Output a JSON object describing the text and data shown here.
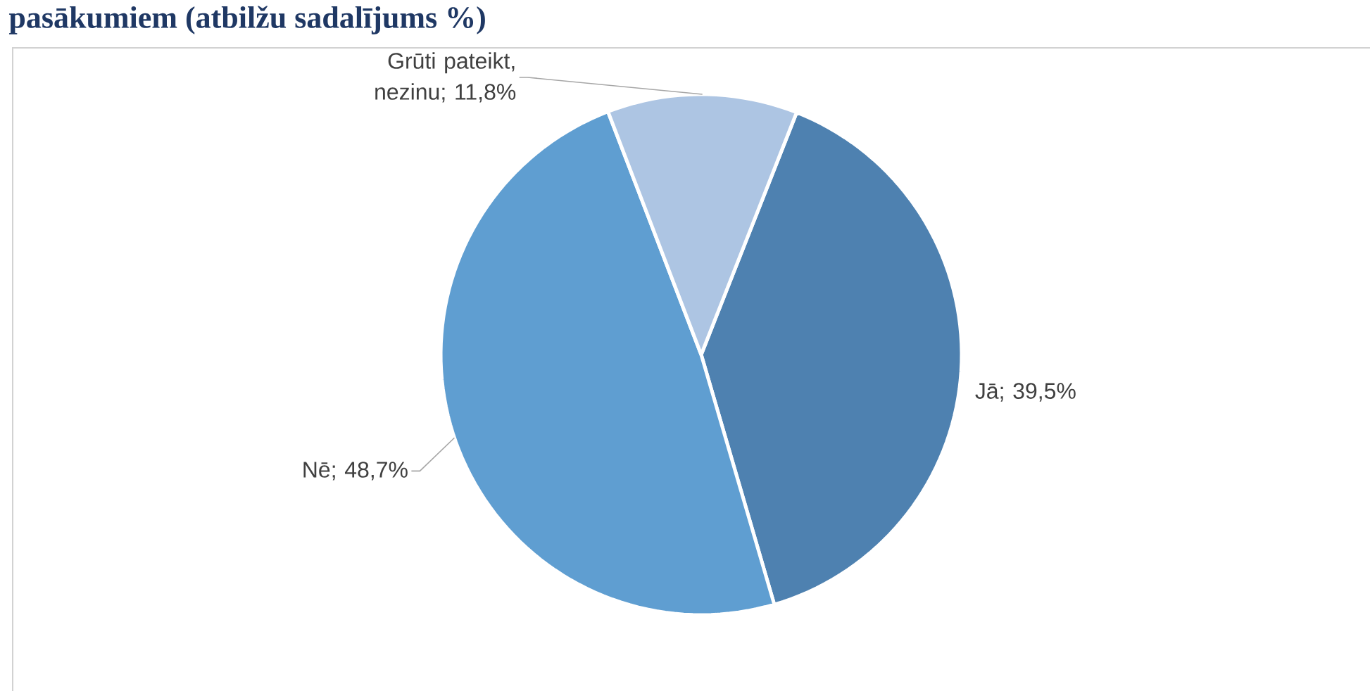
{
  "chart_data": {
    "type": "pie",
    "title": "pasākumiem (atbilžu sadalījums %)",
    "categories": [
      "Jā",
      "Nē",
      "Grūti pateikt, nezinu"
    ],
    "values": [
      39.5,
      48.7,
      11.8
    ],
    "value_labels": [
      "; 39,5%",
      "; 48,7%",
      "; 11,8%"
    ],
    "colors": [
      "#4e81b0",
      "#5f9ed1",
      "#adc5e3"
    ]
  }
}
